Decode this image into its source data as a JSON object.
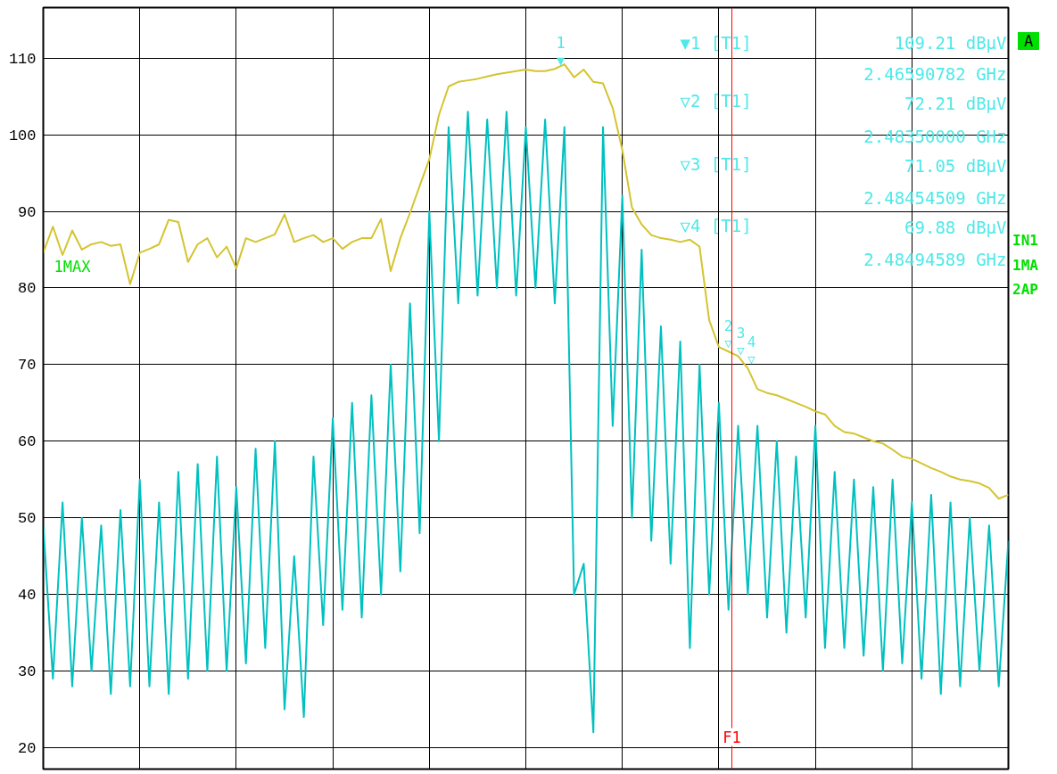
{
  "chart_data": {
    "type": "line",
    "categories": [
      null,
      null,
      null,
      null,
      null,
      null,
      null,
      null,
      null,
      null,
      null,
      null,
      null,
      null,
      null,
      null,
      null,
      null,
      null,
      null,
      null,
      null,
      null,
      null,
      null,
      null,
      null,
      null,
      null,
      null,
      null,
      null,
      null,
      null,
      null,
      null,
      null,
      null,
      null,
      null,
      null,
      null,
      null,
      null,
      null,
      null,
      null,
      null,
      null,
      null,
      null,
      null,
      null,
      null,
      null,
      null,
      null,
      null,
      null,
      null,
      null,
      null,
      null,
      null,
      null,
      null,
      null,
      null,
      null,
      null,
      null,
      null,
      null,
      null,
      null,
      null,
      null,
      null,
      null,
      null,
      null,
      null,
      null,
      null,
      null,
      null,
      null,
      null,
      null,
      null,
      null,
      null,
      null,
      null,
      null,
      null,
      null,
      null,
      null,
      null,
      null
    ],
    "series": [
      {
        "color": "#00c0c0",
        "values": [
          49,
          29,
          52,
          28,
          50,
          30,
          49,
          27,
          51,
          28,
          55,
          28,
          52,
          27,
          56,
          29,
          57,
          30,
          58,
          30,
          54,
          31,
          59,
          33,
          60,
          25,
          45,
          24,
          58,
          36,
          63,
          38,
          65,
          37,
          66,
          40,
          70,
          43,
          78,
          48,
          90,
          60,
          101,
          78,
          103,
          79,
          102,
          80,
          103,
          79,
          101,
          80,
          102,
          78,
          101,
          40,
          44,
          22,
          101,
          62,
          92,
          50,
          85,
          47,
          75,
          44,
          73,
          33,
          70,
          40,
          65,
          38,
          62,
          40,
          62,
          37,
          60,
          35,
          58,
          37,
          62,
          33,
          56,
          33,
          55,
          32,
          54,
          30,
          55,
          31,
          52,
          29,
          53,
          27,
          52,
          28,
          50,
          30,
          49,
          28,
          47
        ]
      },
      {
        "color": "#d4c430",
        "values": [
          84.6,
          88,
          84.3,
          87.5,
          85,
          85.7,
          86,
          85.5,
          85.7,
          80.5,
          84.6,
          85.1,
          85.7,
          88.9,
          88.6,
          83.4,
          85.7,
          86.5,
          84,
          85.4,
          82.6,
          86.5,
          86,
          86.5,
          87,
          89.6,
          86,
          86.5,
          86.9,
          86,
          86.5,
          85.1,
          86,
          86.5,
          86.5,
          89,
          82.2,
          86.5,
          89.8,
          93.3,
          96.8,
          102.6,
          106.3,
          106.9,
          107.1,
          107.3,
          107.6,
          107.9,
          108.1,
          108.3,
          108.5,
          108.3,
          108.3,
          108.6,
          109.2,
          107.5,
          108.5,
          106.9,
          106.7,
          103.5,
          98,
          90.5,
          88.3,
          86.9,
          86.5,
          86.3,
          86,
          86.3,
          85.4,
          75.8,
          72.3,
          71.7,
          71.1,
          69.5,
          66.8,
          66.3,
          66,
          65.5,
          65,
          64.5,
          63.9,
          63.5,
          62,
          61.2,
          61,
          60.5,
          60,
          59.7,
          58.9,
          58,
          57.7,
          57.1,
          56.5,
          56,
          55.4,
          55,
          54.8,
          54.5,
          53.9,
          52.5,
          53
        ]
      }
    ],
    "ylim": [
      17.2,
      116.6
    ],
    "yticks": [
      20,
      30,
      40,
      50,
      60,
      70,
      80,
      90,
      100,
      110
    ],
    "grid": true,
    "annotations": [
      "▼1 [T1]",
      "109.21 dBµV",
      "2.46590782 GHz",
      "▽2 [T1]",
      "72.21 dBµV",
      "2.48350000 GHz",
      "▽3 [T1]",
      "71.05 dBµV",
      "2.48454509 GHz",
      "▽4 [T1]",
      "69.88 dBµV",
      "2.48494589 GHz",
      "A",
      "IN1",
      "1MA",
      "2AP",
      "1MAX",
      "1",
      "▼",
      "2",
      "▽",
      "3",
      "▽",
      "4",
      "▽",
      "F1"
    ]
  }
}
